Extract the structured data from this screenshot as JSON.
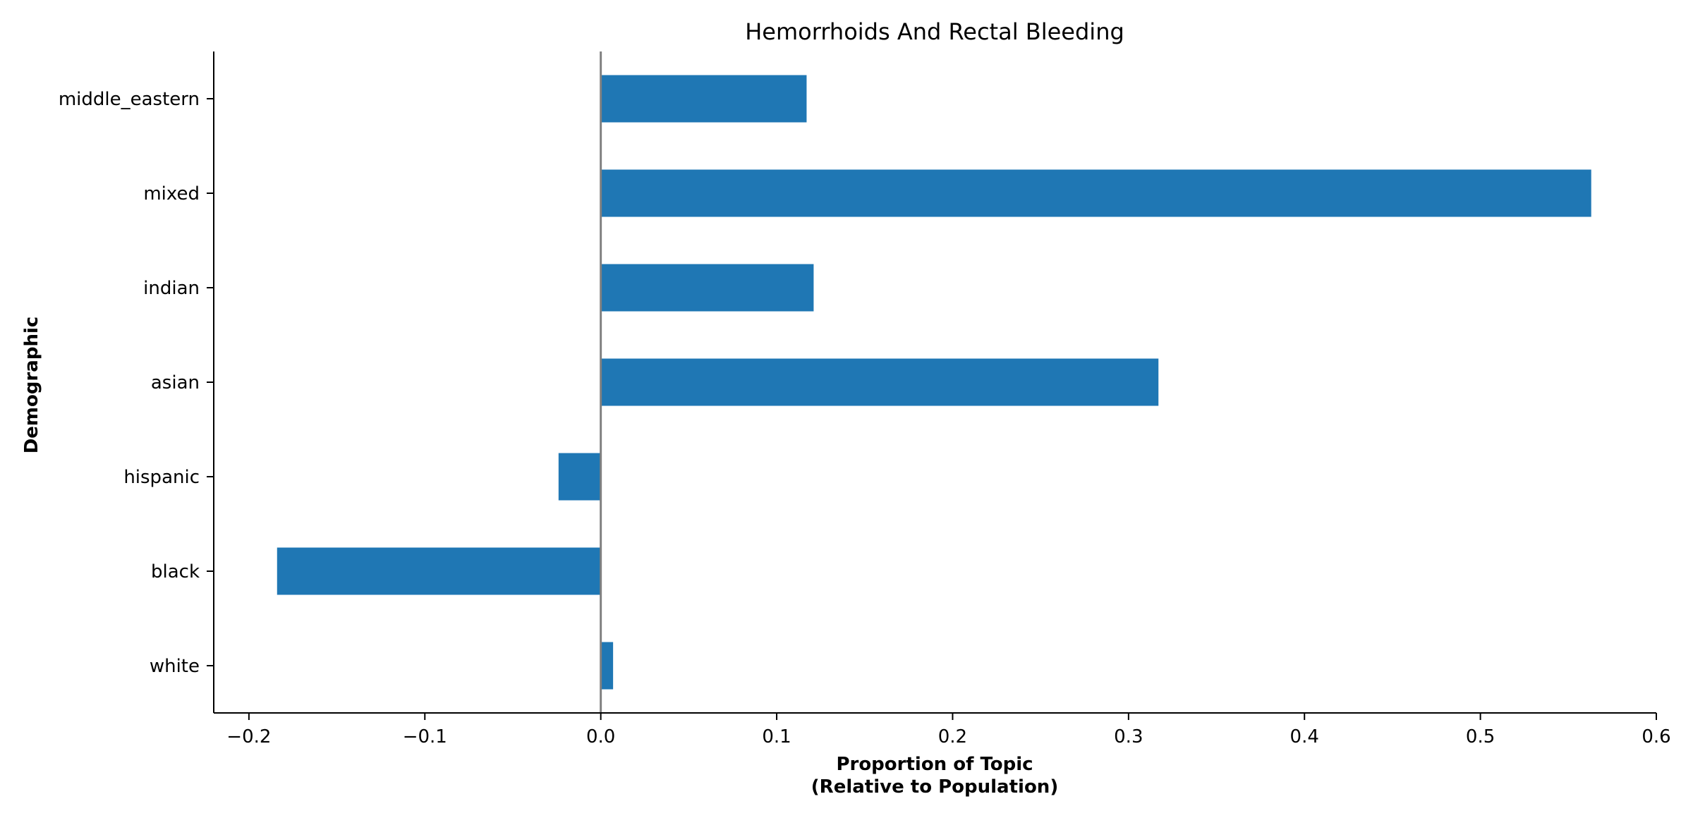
{
  "chart_data": {
    "type": "bar",
    "orientation": "horizontal",
    "title": "Hemorrhoids And Rectal Bleeding",
    "xlabel_lines": [
      "Proportion of Topic",
      "(Relative to Population)"
    ],
    "ylabel": "Demographic",
    "categories": [
      "white",
      "black",
      "hispanic",
      "asian",
      "indian",
      "mixed",
      "middle_eastern"
    ],
    "values": [
      0.007,
      -0.184,
      -0.024,
      0.317,
      0.121,
      0.563,
      0.117
    ],
    "xlim": [
      -0.22,
      0.6
    ],
    "xticks": [
      -0.2,
      -0.1,
      0.0,
      0.1,
      0.2,
      0.3,
      0.4,
      0.5,
      0.6
    ],
    "xtick_labels": [
      "−0.2",
      "−0.1",
      "0.0",
      "0.1",
      "0.2",
      "0.3",
      "0.4",
      "0.5",
      "0.6"
    ],
    "bar_color": "#1f77b4",
    "zero_line_color": "#808080",
    "grid": false,
    "legend": "none"
  }
}
